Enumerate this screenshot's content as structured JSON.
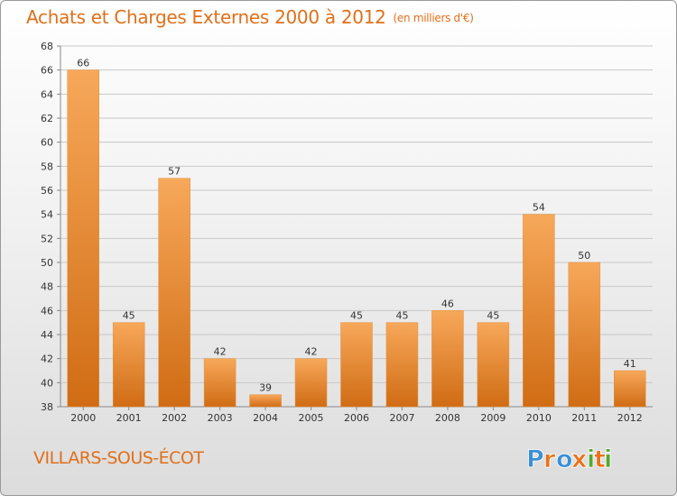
{
  "header": {
    "title": "Achats et Charges Externes 2000 à 2012",
    "unit": "(en milliers d'€)"
  },
  "place": "VILLARS-SOUS-ÉCOT",
  "logo": {
    "text": "Proxiti",
    "colors": [
      "#3a8fd6",
      "#e8731a",
      "#3a8fd6",
      "#e8731a",
      "#55a630",
      "#e8731a",
      "#55a630"
    ]
  },
  "colors": {
    "accent": "#e0701a",
    "bar_light": "#f7a85a",
    "bar_dark": "#d06c14"
  },
  "chart_data": {
    "type": "bar",
    "title": "Achats et Charges Externes 2000 à 2012",
    "xlabel": "",
    "ylabel": "",
    "categories": [
      "2000",
      "2001",
      "2002",
      "2003",
      "2004",
      "2005",
      "2006",
      "2007",
      "2008",
      "2009",
      "2010",
      "2011",
      "2012"
    ],
    "values": [
      66,
      45,
      57,
      42,
      39,
      42,
      45,
      45,
      46,
      45,
      54,
      50,
      41
    ],
    "ylim": [
      38,
      68
    ],
    "yticks": [
      38,
      40,
      42,
      44,
      46,
      48,
      50,
      52,
      54,
      56,
      58,
      60,
      62,
      64,
      66,
      68
    ],
    "grid": true
  }
}
